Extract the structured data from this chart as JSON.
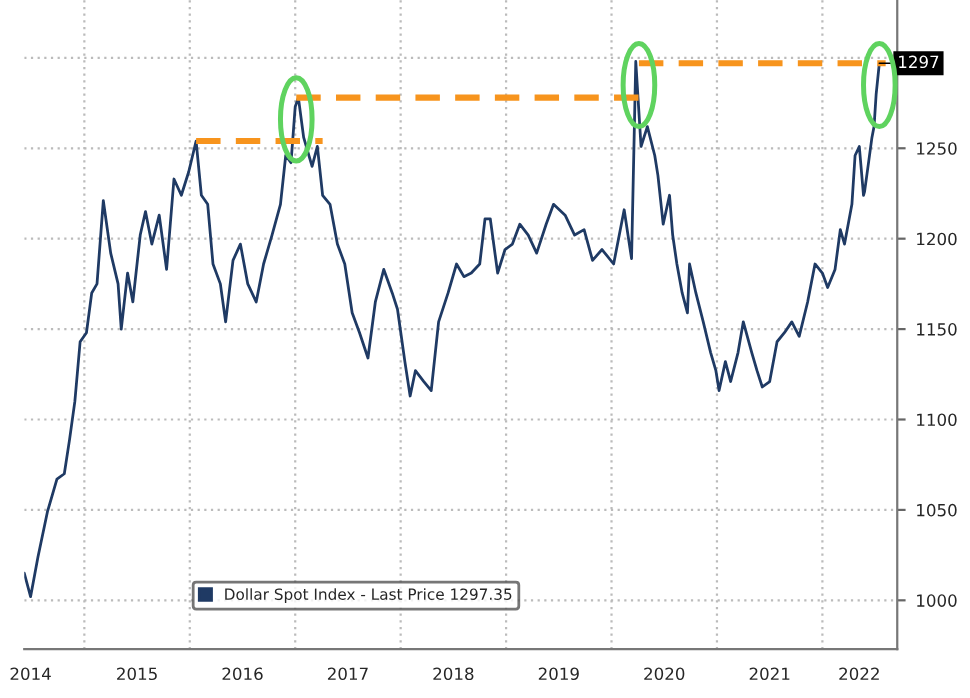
{
  "chart_data": {
    "type": "line",
    "x": [
      2014.43,
      2014.49,
      2014.56,
      2014.65,
      2014.74,
      2014.81,
      2014.86,
      2014.91,
      2014.96,
      2015.02,
      2015.07,
      2015.12,
      2015.18,
      2015.25,
      2015.32,
      2015.35,
      2015.41,
      2015.46,
      2015.53,
      2015.58,
      2015.64,
      2015.71,
      2015.78,
      2015.85,
      2015.92,
      2015.99,
      2016.06,
      2016.11,
      2016.17,
      2016.22,
      2016.29,
      2016.34,
      2016.41,
      2016.48,
      2016.55,
      2016.63,
      2016.7,
      2016.78,
      2016.86,
      2016.91,
      2016.96,
      2017.0,
      2017.03,
      2017.08,
      2017.16,
      2017.21,
      2017.26,
      2017.33,
      2017.4,
      2017.47,
      2017.54,
      2017.61,
      2017.69,
      2017.76,
      2017.84,
      2017.92,
      2017.97,
      2018.04,
      2018.09,
      2018.14,
      2018.22,
      2018.29,
      2018.36,
      2018.45,
      2018.53,
      2018.6,
      2018.67,
      2018.75,
      2018.8,
      2018.85,
      2018.92,
      2018.99,
      2019.06,
      2019.13,
      2019.21,
      2019.29,
      2019.38,
      2019.45,
      2019.56,
      2019.65,
      2019.74,
      2019.82,
      2019.91,
      2020.02,
      2020.12,
      2020.19,
      2020.23,
      2020.28,
      2020.34,
      2020.41,
      2020.44,
      2020.49,
      2020.55,
      2020.58,
      2020.62,
      2020.67,
      2020.72,
      2020.74,
      2020.8,
      2020.87,
      2020.94,
      2020.99,
      2021.02,
      2021.08,
      2021.13,
      2021.2,
      2021.25,
      2021.33,
      2021.38,
      2021.43,
      2021.5,
      2021.57,
      2021.64,
      2021.71,
      2021.78,
      2021.86,
      2021.93,
      2022.0,
      2022.05,
      2022.12,
      2022.17,
      2022.21,
      2022.28,
      2022.31,
      2022.35,
      2022.39,
      2022.4,
      2022.44,
      2022.47,
      2022.49,
      2022.51,
      2022.54
    ],
    "series": [
      {
        "name": "Dollar Spot Index - Last Price 1297.35",
        "color": "#1f3a64",
        "values": [
          1015,
          1002,
          1024,
          1049,
          1067,
          1070,
          1089,
          1110,
          1143,
          1148,
          1170,
          1175,
          1221,
          1192,
          1175,
          1150,
          1181,
          1165,
          1202,
          1215,
          1197,
          1213,
          1183,
          1233,
          1224,
          1237,
          1254,
          1224,
          1219,
          1186,
          1175,
          1154,
          1188,
          1197,
          1175,
          1165,
          1186,
          1202,
          1219,
          1246,
          1242,
          1273,
          1278,
          1256,
          1240,
          1251,
          1224,
          1219,
          1197,
          1186,
          1159,
          1148,
          1134,
          1165,
          1183,
          1170,
          1161,
          1132,
          1113,
          1127,
          1121,
          1116,
          1154,
          1170,
          1186,
          1179,
          1181,
          1186,
          1211,
          1211,
          1181,
          1194,
          1197,
          1208,
          1202,
          1192,
          1208,
          1219,
          1213,
          1202,
          1205,
          1188,
          1194,
          1186,
          1216,
          1189,
          1298,
          1251,
          1262,
          1246,
          1235,
          1208,
          1224,
          1202,
          1186,
          1170,
          1159,
          1186,
          1170,
          1154,
          1137,
          1127,
          1116,
          1132,
          1121,
          1137,
          1154,
          1137,
          1127,
          1118,
          1121,
          1143,
          1148,
          1154,
          1146,
          1165,
          1186,
          1181,
          1173,
          1183,
          1205,
          1197,
          1219,
          1246,
          1251,
          1224,
          1226,
          1243,
          1256,
          1262,
          1280,
          1297
        ]
      },
      {
        "type": "line",
        "x": [
          2016.06,
          2017.26
        ],
        "color": "#f7941d",
        "line_style": "dashed",
        "values": [
          1254,
          1254
        ]
      },
      {
        "type": "line",
        "x": [
          2017.01,
          2020.32
        ],
        "color": "#f7941d",
        "line_style": "dashed",
        "values": [
          1278,
          1278
        ]
      },
      {
        "type": "line",
        "x": [
          2020.26,
          2022.6
        ],
        "color": "#f7941d",
        "line_style": "dashed",
        "values": [
          1297,
          1297
        ]
      }
    ],
    "xlim": [
      2014.43,
      2022.71
    ],
    "xticks": [
      {
        "value": 2015,
        "label": null
      },
      {
        "value": 2016,
        "label": null
      },
      {
        "value": 2017,
        "label": null
      },
      {
        "value": 2018,
        "label": null
      },
      {
        "value": 2019,
        "label": null
      },
      {
        "value": 2020,
        "label": null
      },
      {
        "value": 2021,
        "label": null
      },
      {
        "value": 2022,
        "label": null
      },
      {
        "value": 2014.49,
        "label": "2014"
      },
      {
        "value": 2015.5,
        "label": "2015"
      },
      {
        "value": 2016.5,
        "label": "2016"
      },
      {
        "value": 2017.5,
        "label": "2017"
      },
      {
        "value": 2018.5,
        "label": "2018"
      },
      {
        "value": 2019.5,
        "label": "2019"
      },
      {
        "value": 2020.5,
        "label": "2020"
      },
      {
        "value": 2021.5,
        "label": "2021"
      },
      {
        "value": 2022.35,
        "label": "2022"
      }
    ],
    "ylim": [
      973,
      1332
    ],
    "yticks": [
      1000,
      1050,
      1100,
      1150,
      1200,
      1250,
      {
        "value": 1300,
        "label": null
      }
    ],
    "annotations": [
      {
        "text": "1297",
        "x": 2022.54,
        "y": 1297
      }
    ],
    "grid": true,
    "legend": "bottom"
  }
}
